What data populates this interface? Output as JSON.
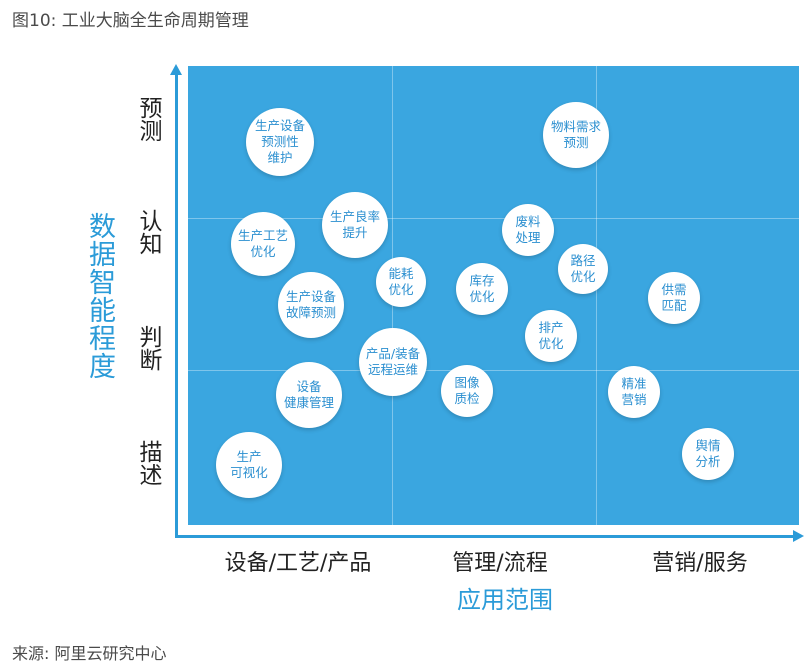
{
  "title": "图10: 工业大脑全生命周期管理",
  "source": "来源:    阿里云研究中心",
  "y_axis": {
    "title": "数据智能程度",
    "levels": [
      "预测",
      "认知",
      "判断",
      "描述"
    ]
  },
  "x_axis": {
    "title": "应用范围",
    "categories": [
      "设备/工艺/产品",
      "管理/流程",
      "营销/服务"
    ]
  },
  "bubbles": [
    {
      "label": "生产设备\n预测性\n维护"
    },
    {
      "label": "物料需求\n预测"
    },
    {
      "label": "生产良率\n提升"
    },
    {
      "label": "生产工艺\n优化"
    },
    {
      "label": "废料\n处理"
    },
    {
      "label": "能耗\n优化"
    },
    {
      "label": "库存\n优化"
    },
    {
      "label": "路径\n优化"
    },
    {
      "label": "供需\n匹配"
    },
    {
      "label": "生产设备\n故障预测"
    },
    {
      "label": "排产\n优化"
    },
    {
      "label": "产品/装备\n远程运维"
    },
    {
      "label": "设备\n健康管理"
    },
    {
      "label": "图像\n质检"
    },
    {
      "label": "精准\n营销"
    },
    {
      "label": "生产\n可视化"
    },
    {
      "label": "舆情\n分析"
    }
  ]
}
